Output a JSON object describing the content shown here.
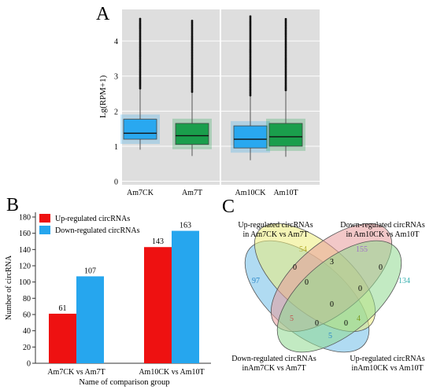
{
  "panels": {
    "a": "A",
    "b": "B",
    "c": "C"
  },
  "chart_data": [
    {
      "type": "box",
      "panel": "A",
      "ylabel": "Lg(RPM+1)",
      "ylim": [
        -0.1,
        4.9
      ],
      "yticks": [
        0,
        1,
        2,
        3,
        4
      ],
      "grid": true,
      "facets": [
        {
          "groups": [
            {
              "label": "Am7CK",
              "min": 0.9,
              "q1": 1.2,
              "median": 1.37,
              "q3": 1.77,
              "whisker_hi": 2.65,
              "outlier_max": 4.65,
              "color": "#29a8f0"
            },
            {
              "label": "Am7T",
              "min": 0.72,
              "q1": 1.05,
              "median": 1.3,
              "q3": 1.65,
              "whisker_hi": 2.55,
              "outlier_max": 4.6,
              "color": "#1a9e4c"
            }
          ]
        },
        {
          "groups": [
            {
              "label": "Am10CK",
              "min": 0.6,
              "q1": 0.95,
              "median": 1.2,
              "q3": 1.58,
              "whisker_hi": 2.45,
              "outlier_max": 4.7,
              "color": "#29a8f0"
            },
            {
              "label": "Am10T",
              "min": 0.7,
              "q1": 1.0,
              "median": 1.27,
              "q3": 1.65,
              "whisker_hi": 2.6,
              "outlier_max": 4.65,
              "color": "#1a9e4c"
            }
          ]
        }
      ]
    },
    {
      "type": "bar",
      "panel": "B",
      "categories": [
        "Am7CK vs Am7T",
        "Am10CK vs Am10T"
      ],
      "series": [
        {
          "name": "Up-regulated circRNAs",
          "values": [
            61,
            143
          ],
          "color": "#ee1111"
        },
        {
          "name": "Down-regulated circRNAs",
          "values": [
            107,
            163
          ],
          "color": "#26a6ee"
        }
      ],
      "xlabel": "Name of comparison group",
      "ylabel": "Number of circRNA",
      "ylim": [
        0,
        180
      ],
      "yticks": [
        0,
        20,
        40,
        60,
        80,
        100,
        120,
        140,
        160,
        180
      ],
      "legend": "top-left"
    },
    {
      "type": "venn",
      "panel": "C",
      "sets": [
        {
          "label_line1": "Down-regulated circRNAs",
          "label_line2": "inAm7CK vs Am7T",
          "color": "#6fbde8"
        },
        {
          "label_line1": "Up-regulated circRNAs",
          "label_line2": "in Am7CK vs Am7T",
          "color": "#ecec7a"
        },
        {
          "label_line1": "Down-regulated circRNAs",
          "label_line2": "in Am10CK vs Am10T",
          "color": "#e79a9a"
        },
        {
          "label_line1": "Up-regulated circRNAs",
          "label_line2": "inAm10CK vs Am10T",
          "color": "#8fd98f"
        }
      ],
      "regions": {
        "only_down7": "97",
        "only_up7": "54",
        "only_down10": "155",
        "only_up10": "134",
        "up7_down10": "3",
        "down7_up7": "0",
        "down10_up10": "0",
        "down7_down10": "0",
        "up7_up10": "0",
        "center_upper": "0",
        "center": "0",
        "down7_up10": "5",
        "down7_up10_a": "5",
        "down7_up10_b": "4",
        "bottom_left": "0",
        "bottom_right": "0"
      }
    }
  ]
}
